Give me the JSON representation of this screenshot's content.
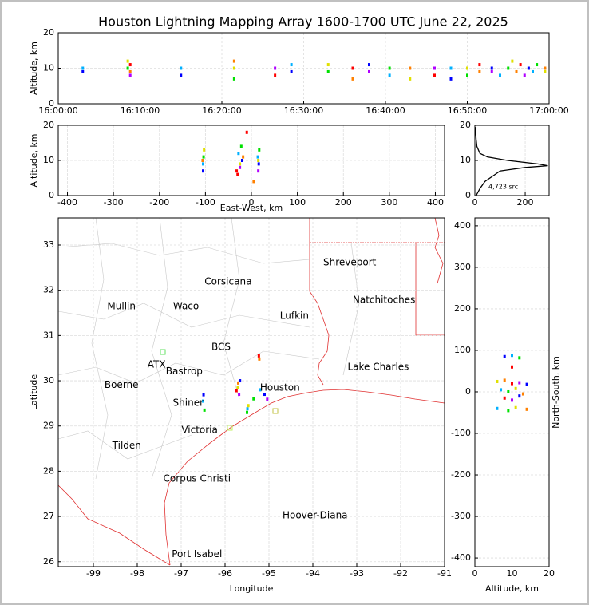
{
  "chart_data": [
    {
      "type": "scatter",
      "title": "Houston Lightning Mapping Array 1600-1700 UTC June 22, 2025",
      "ylabel": "Altitude, km",
      "xlim": [
        0,
        60
      ],
      "ylim": [
        0,
        20
      ],
      "xticks": [
        {
          "value": 0,
          "label": "16:00:00"
        },
        {
          "value": 10,
          "label": "16:10:00"
        },
        {
          "value": 20,
          "label": "16:20:00"
        },
        {
          "value": 30,
          "label": "16:30:00"
        },
        {
          "value": 40,
          "label": "16:40:00"
        },
        {
          "value": 50,
          "label": "16:50:00"
        },
        {
          "value": 60,
          "label": "17:00:00"
        }
      ],
      "yticks": [
        0,
        10,
        20
      ],
      "grid": true,
      "colors": [
        "#0000ff",
        "#00b0ff",
        "#00e000",
        "#e0e000",
        "#ff8000",
        "#ff0000",
        "#b000ff"
      ],
      "x": [
        3,
        3,
        8.5,
        8.5,
        8.8,
        8.8,
        8.8,
        15,
        15,
        21.5,
        21.5,
        21.5,
        26.5,
        26.5,
        28.5,
        28.5,
        33,
        33,
        36,
        36,
        38,
        38,
        40.5,
        40.5,
        43,
        43,
        46,
        46,
        48,
        48,
        50,
        50,
        51.5,
        51.5,
        53,
        53,
        54,
        55,
        55.5,
        56,
        56.5,
        57,
        57.5,
        58,
        58.5,
        59.5,
        59.5
      ],
      "y": [
        9,
        10,
        10,
        12,
        9,
        11,
        8,
        8,
        10,
        7,
        10,
        12,
        8,
        10,
        9,
        11,
        9,
        11,
        7,
        10,
        9,
        11,
        8,
        10,
        7,
        10,
        8,
        10,
        7,
        10,
        8,
        10,
        9,
        11,
        9,
        10,
        8,
        10,
        12,
        9,
        11,
        8,
        10,
        9,
        11,
        9,
        10
      ]
    },
    {
      "type": "scatter",
      "xlabel": "East-West, km",
      "ylabel": "Altitude, km",
      "xlim": [
        -420,
        420
      ],
      "ylim": [
        0,
        20
      ],
      "xticks": [
        -400,
        -300,
        -200,
        -100,
        0,
        100,
        200,
        300,
        400
      ],
      "yticks": [
        0,
        10,
        20
      ],
      "grid": true,
      "colors": [
        "#0000ff",
        "#00b0ff",
        "#00e000",
        "#e0e000",
        "#ff8000",
        "#ff0000",
        "#b000ff"
      ],
      "x": [
        -105,
        -105,
        -104,
        -103,
        -106,
        -30,
        -25,
        -20,
        -28,
        -22,
        -25,
        -18,
        -32,
        15,
        16,
        14,
        17,
        15,
        5,
        -10
      ],
      "y": [
        7,
        9,
        11,
        13,
        10,
        6,
        8,
        10,
        12,
        14,
        9,
        11,
        7,
        7,
        9,
        11,
        13,
        10,
        4,
        18
      ]
    },
    {
      "type": "line",
      "annotation": "4,723 src",
      "xlim": [
        0,
        295
      ],
      "ylim": [
        0,
        20
      ],
      "xticks": [
        0,
        200
      ],
      "yticks": [
        0,
        10,
        20
      ],
      "grid": true,
      "x": [
        5,
        20,
        40,
        80,
        100,
        200,
        290,
        250,
        130,
        50,
        20,
        8,
        5,
        3,
        2
      ],
      "y": [
        0,
        2,
        4,
        6,
        7,
        8,
        8.5,
        9,
        10,
        11,
        12,
        14,
        16,
        18,
        19.5
      ]
    },
    {
      "type": "map",
      "xlabel": "Longitude",
      "ylabel": "Latitude",
      "xlim": [
        -99.8,
        -91
      ],
      "ylim": [
        25.89,
        33.6
      ],
      "xticks": [
        -99,
        -98,
        -97,
        -96,
        -95,
        -94,
        -93,
        -92,
        -91
      ],
      "yticks": [
        26,
        27,
        28,
        29,
        30,
        31,
        32,
        33
      ],
      "grid": true,
      "colors": [
        "#0000ff",
        "#00b0ff",
        "#00e000",
        "#e0e000",
        "#ff8000",
        "#ff0000",
        "#b000ff"
      ],
      "cities": [
        {
          "name": "Shreveport",
          "lon": -93.16,
          "lat": 32.61,
          "color": "#000000"
        },
        {
          "name": "Corsicana",
          "lon": -95.93,
          "lat": 32.19,
          "color": "#000000"
        },
        {
          "name": "Natchitoches",
          "lon": -92.38,
          "lat": 31.78,
          "color": "#000000"
        },
        {
          "name": "Mullin",
          "lon": -98.36,
          "lat": 31.64,
          "color": "#f08040"
        },
        {
          "name": "Waco",
          "lon": -96.89,
          "lat": 31.64,
          "color": "#000000"
        },
        {
          "name": "Lufkin",
          "lon": -94.42,
          "lat": 31.43,
          "color": "#000000"
        },
        {
          "name": "BCS",
          "lon": -96.09,
          "lat": 30.74,
          "color": "#505050"
        },
        {
          "name": "ATX",
          "lon": -97.56,
          "lat": 30.35,
          "color": "#f08040"
        },
        {
          "name": "Bastrop",
          "lon": -96.93,
          "lat": 30.2,
          "color": "#000000"
        },
        {
          "name": "Lake Charles",
          "lon": -92.51,
          "lat": 30.3,
          "color": "#000000"
        },
        {
          "name": "Houston",
          "lon": -94.75,
          "lat": 29.84,
          "color": "#f0a000"
        },
        {
          "name": "Boerne",
          "lon": -98.36,
          "lat": 29.9,
          "color": "#000000"
        },
        {
          "name": "Shiner",
          "lon": -96.84,
          "lat": 29.51,
          "color": "#000000"
        },
        {
          "name": "Victoria",
          "lon": -96.58,
          "lat": 28.91,
          "color": "#000000"
        },
        {
          "name": "Tilden",
          "lon": -98.24,
          "lat": 28.56,
          "color": "#000000"
        },
        {
          "name": "Corpus Christi",
          "lon": -96.64,
          "lat": 27.83,
          "color": "#000000"
        },
        {
          "name": "Hoover-Diana",
          "lon": -93.95,
          "lat": 27.02,
          "color": "#0000e0"
        },
        {
          "name": "Port Isabel",
          "lon": -96.64,
          "lat": 26.16,
          "color": "#000000"
        }
      ],
      "x": [
        -96.49,
        -96.5,
        -96.47,
        -95.71,
        -95.7,
        -95.74,
        -95.68,
        -95.66,
        -95.49,
        -95.5,
        -95.47,
        -95.22,
        -95.23,
        -95.04,
        -95.1,
        -95.2,
        -95.35
      ],
      "y": [
        29.69,
        29.55,
        29.35,
        29.86,
        29.95,
        29.78,
        29.7,
        30.0,
        29.38,
        29.3,
        29.45,
        30.48,
        30.55,
        29.59,
        29.7,
        29.8,
        29.6
      ]
    },
    {
      "type": "scatter",
      "xlabel": "Altitude, km",
      "ylabel": "North-South, km",
      "xlim": [
        0,
        20
      ],
      "ylim": [
        -421,
        419
      ],
      "xticks": [
        0,
        10,
        20
      ],
      "yticks": [
        -400,
        -300,
        -200,
        -100,
        0,
        100,
        200,
        300,
        400
      ],
      "grid": true,
      "colors": [
        "#0000ff",
        "#00b0ff",
        "#00e000",
        "#e0e000",
        "#ff8000",
        "#ff0000",
        "#b000ff"
      ],
      "x": [
        8,
        10,
        12,
        6,
        8,
        10,
        12,
        14,
        7,
        9,
        11,
        13,
        8,
        10,
        12,
        6,
        9,
        11,
        14,
        10
      ],
      "y": [
        85,
        88,
        82,
        25,
        28,
        20,
        22,
        18,
        5,
        0,
        8,
        -5,
        -15,
        -20,
        -10,
        -40,
        -45,
        -38,
        -42,
        60
      ]
    }
  ]
}
